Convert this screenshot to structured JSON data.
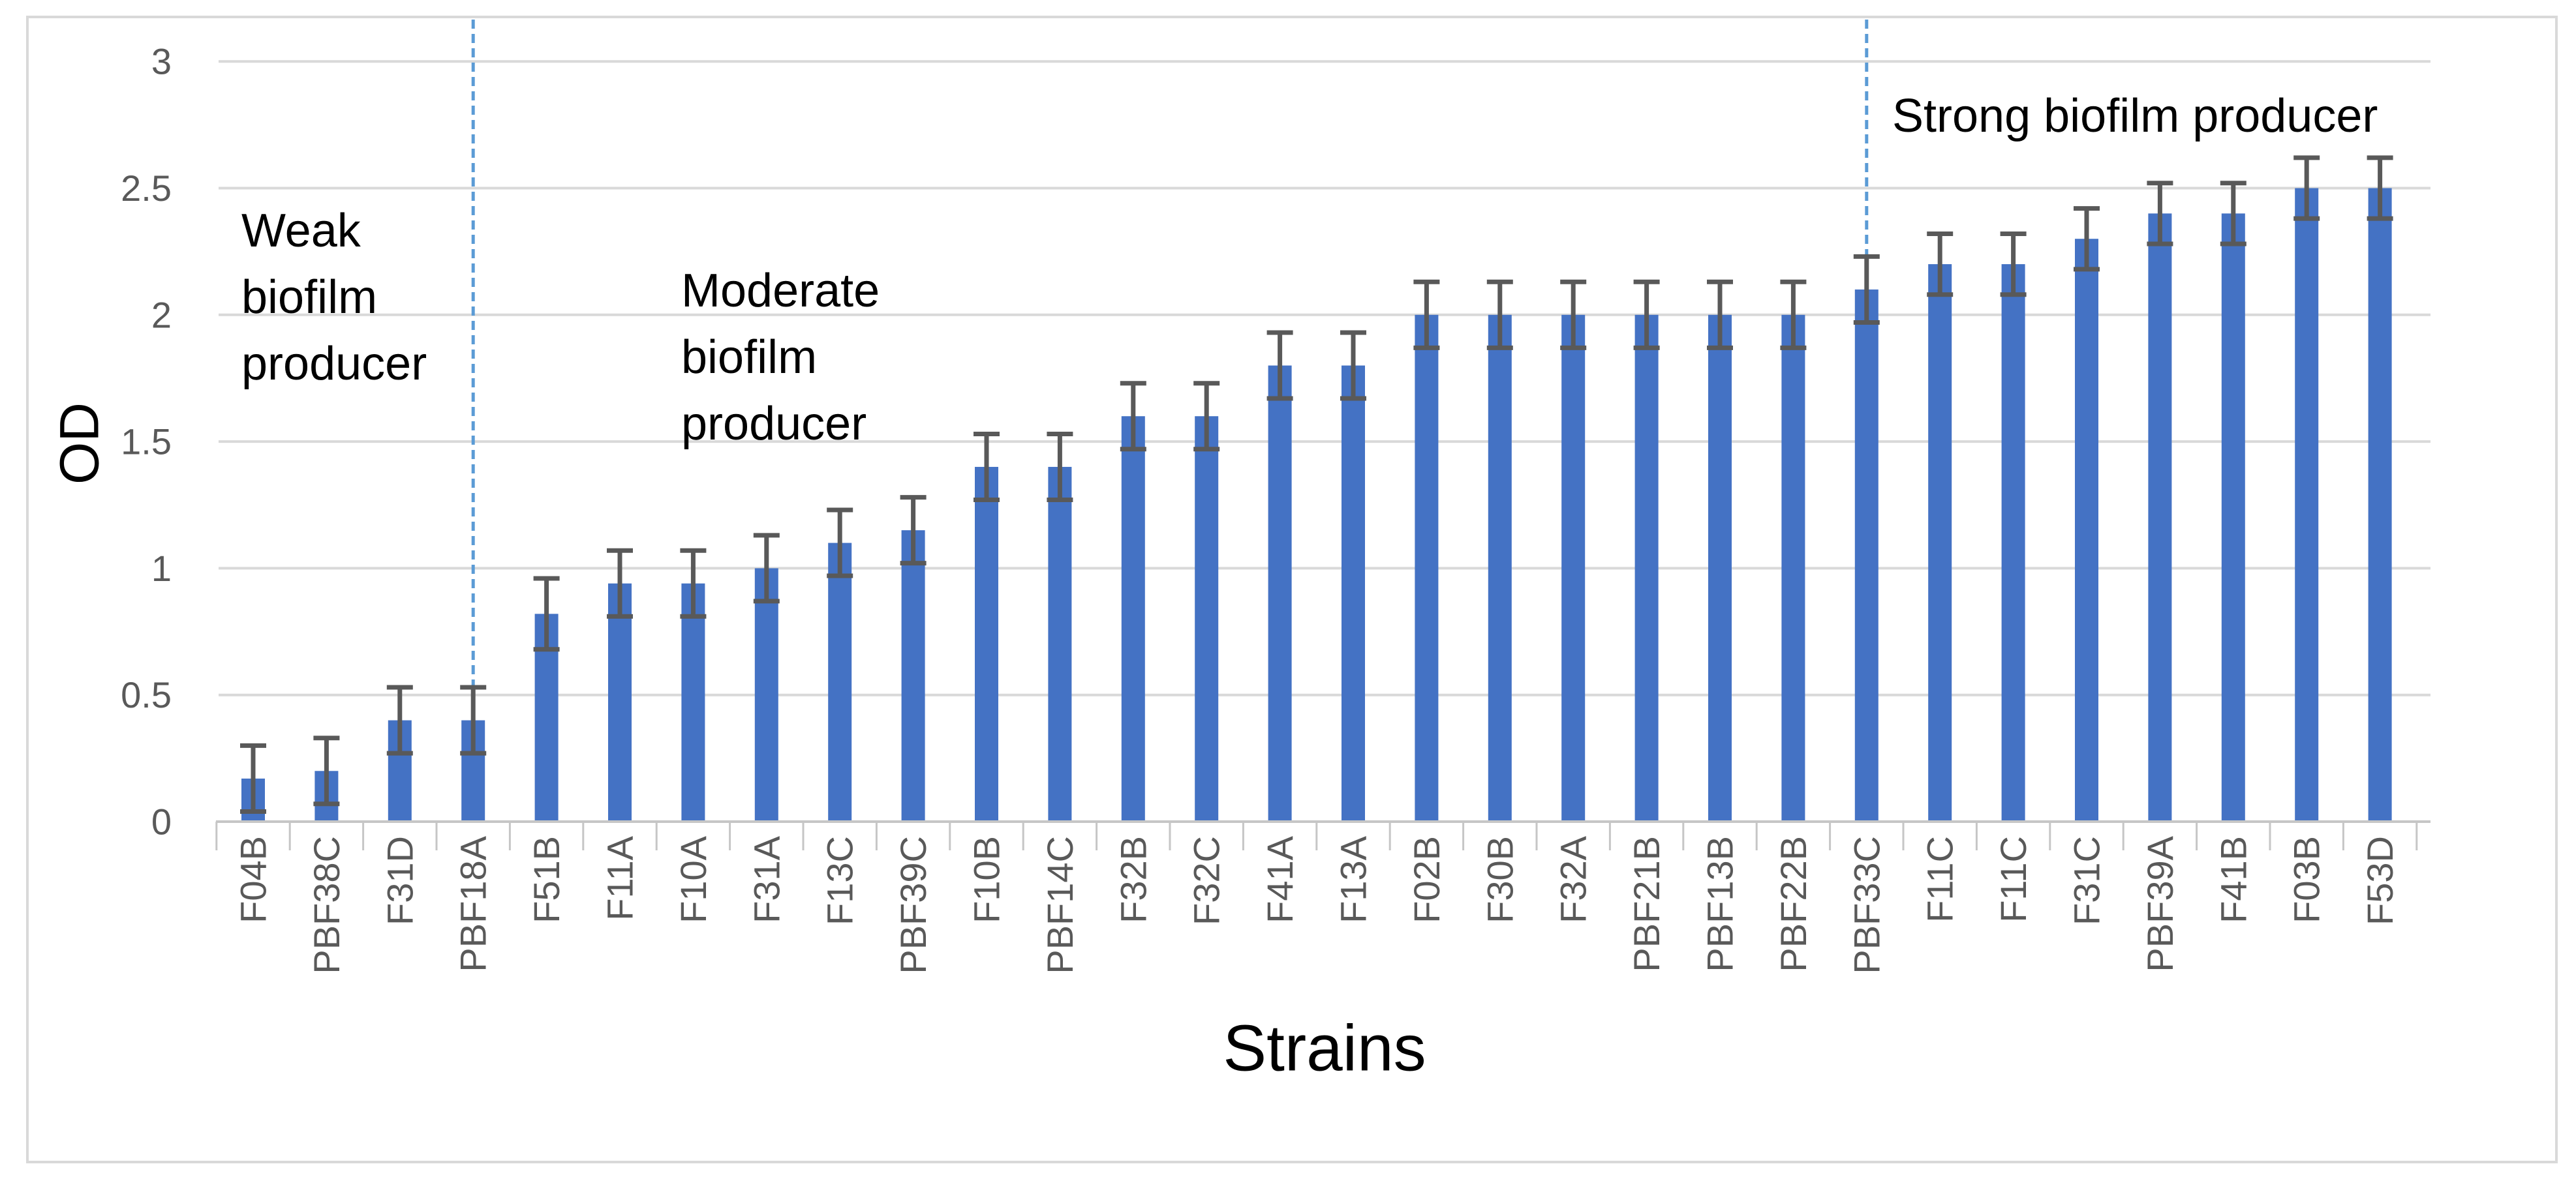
{
  "y_axis": {
    "label": "OD",
    "tick_labels": [
      "0",
      "0.5",
      "1",
      "1.5",
      "2",
      "2.5",
      "3"
    ]
  },
  "x_axis": {
    "label": "Strains"
  },
  "annotations": {
    "weak": {
      "lines": [
        "Weak",
        "biofilm",
        "producer"
      ]
    },
    "moderate": {
      "lines": [
        "Moderate",
        "biofilm",
        "producer"
      ]
    },
    "strong": {
      "text": "Strong biofilm producer"
    }
  },
  "chart_data": {
    "type": "bar",
    "title": "",
    "xlabel": "Strains",
    "ylabel": "OD",
    "ylim": [
      0,
      3
    ],
    "y_tick_step": 0.5,
    "grid": true,
    "legend": "none",
    "categories": [
      "F04B",
      "PBF38C",
      "F31D",
      "PBF18A",
      "F51B",
      "F11A",
      "F10A",
      "F31A",
      "F13C",
      "PBF39C",
      "F10B",
      "PBF14C",
      "F32B",
      "F32C",
      "F41A",
      "F13A",
      "F02B",
      "F30B",
      "F32A",
      "PBF21B",
      "PBF13B",
      "PBF22B",
      "PBF33C",
      "F11C",
      "F11C",
      "F31C",
      "PBF39A",
      "F41B",
      "F03B",
      "F53D"
    ],
    "values": [
      0.17,
      0.2,
      0.4,
      0.4,
      0.82,
      0.94,
      0.94,
      1.0,
      1.1,
      1.15,
      1.4,
      1.4,
      1.6,
      1.6,
      1.8,
      1.8,
      2.0,
      2.0,
      2.0,
      2.0,
      2.0,
      2.0,
      2.1,
      2.2,
      2.2,
      2.3,
      2.4,
      2.4,
      2.5,
      2.5
    ],
    "errors": [
      0.13,
      0.13,
      0.13,
      0.13,
      0.14,
      0.13,
      0.13,
      0.13,
      0.13,
      0.13,
      0.13,
      0.13,
      0.13,
      0.13,
      0.13,
      0.13,
      0.13,
      0.13,
      0.13,
      0.13,
      0.13,
      0.13,
      0.13,
      0.12,
      0.12,
      0.12,
      0.12,
      0.12,
      0.12,
      0.12
    ],
    "region_divider_indices": [
      3,
      22
    ],
    "region_labels": [
      "Weak biofilm producer",
      "Moderate biofilm producer",
      "Strong biofilm producer"
    ],
    "colors": {
      "bar": "#4472C4",
      "error": "#595959",
      "divider": "#5B9BD5",
      "grid": "#D9D9D9",
      "axis": "#C6C6C6",
      "tick_text": "#595959"
    }
  }
}
